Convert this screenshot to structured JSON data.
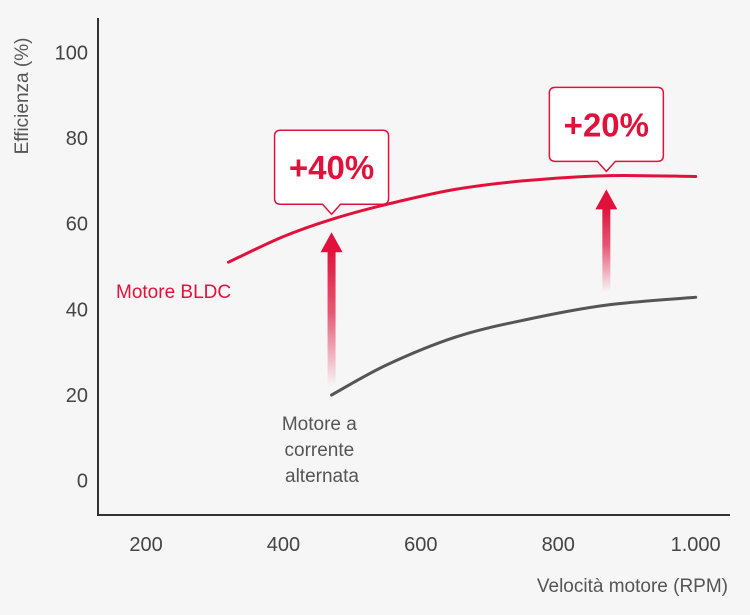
{
  "chart_data": {
    "type": "line",
    "xlabel": "Velocità motore (RPM)",
    "ylabel": "Efficienza (%)",
    "x_ticks": [
      {
        "value": 200,
        "label": "200"
      },
      {
        "value": 400,
        "label": "400"
      },
      {
        "value": 600,
        "label": "600"
      },
      {
        "value": 800,
        "label": "800"
      },
      {
        "value": 1000,
        "label": "1.000"
      }
    ],
    "y_ticks": [
      {
        "value": 0,
        "label": "0"
      },
      {
        "value": 20,
        "label": "20"
      },
      {
        "value": 40,
        "label": "40"
      },
      {
        "value": 60,
        "label": "60"
      },
      {
        "value": 80,
        "label": "80"
      },
      {
        "value": 100,
        "label": "100"
      }
    ],
    "xlim": [
      130,
      1050
    ],
    "ylim": [
      -8,
      108
    ],
    "grid": false,
    "series": [
      {
        "name": "Motore BLDC",
        "color": "#e0123c",
        "points": [
          [
            320,
            51
          ],
          [
            400,
            57
          ],
          [
            470,
            61
          ],
          [
            550,
            64.5
          ],
          [
            650,
            68
          ],
          [
            750,
            70
          ],
          [
            870,
            71.2
          ],
          [
            1000,
            71
          ]
        ]
      },
      {
        "name_lines": [
          "Motore a",
          "corrente",
          "alternata"
        ],
        "color": "#555555",
        "points": [
          [
            470,
            20
          ],
          [
            550,
            27
          ],
          [
            650,
            33.5
          ],
          [
            750,
            37.5
          ],
          [
            870,
            41
          ],
          [
            1000,
            42.8
          ]
        ]
      }
    ],
    "annotations": [
      {
        "text": "+40%",
        "x": 470,
        "y_from": 22,
        "y_to": 58
      },
      {
        "text": "+20%",
        "x": 870,
        "y_from": 44,
        "y_to": 68
      }
    ]
  },
  "colors": {
    "accent": "#e0123c",
    "secondary": "#555555",
    "axis": "#333333"
  }
}
